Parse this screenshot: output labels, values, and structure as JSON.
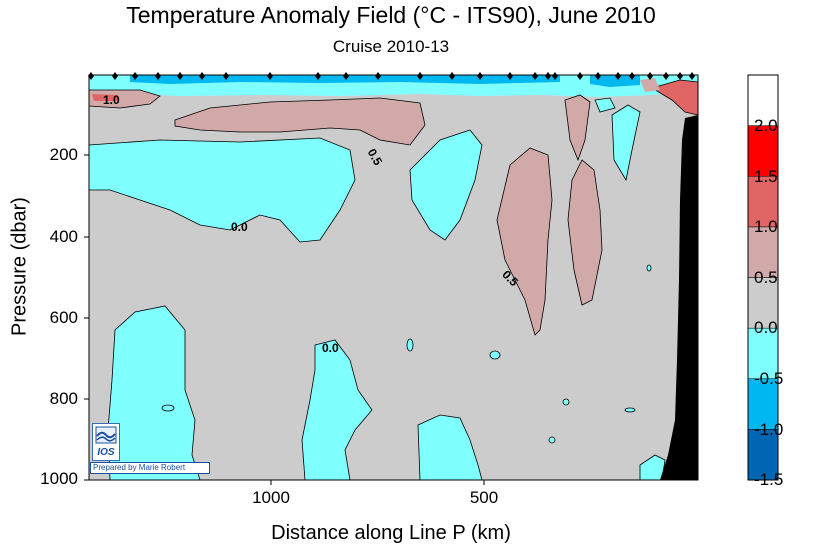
{
  "chart_data": {
    "type": "heatmap",
    "title": "Temperature Anomaly Field  (°C - ITS90),  June 2010",
    "subtitle": "Cruise 2010-13",
    "xlabel": "Distance along Line P  (km)",
    "ylabel": "Pressure  (dbar)",
    "x_ticks": [
      "1000",
      "500"
    ],
    "y_ticks": [
      "200",
      "400",
      "600",
      "800",
      "1000"
    ],
    "ylim": [
      1000,
      0
    ],
    "colorbar": {
      "levels": [
        -1.5,
        -1.0,
        -0.5,
        0.0,
        0.5,
        1.0,
        1.5,
        2.0
      ],
      "labels": [
        "-1.5",
        "-1.0",
        "-0.5",
        "0.0",
        "0.5",
        "1.0",
        "1.5",
        "2.0"
      ],
      "colors": [
        "#0066b3",
        "#00b8f0",
        "#80ffff",
        "#cccccc",
        "#d1a9a9",
        "#e06666",
        "#ff0000",
        "#ffffff"
      ]
    },
    "contour_labels": [
      "1.0",
      "0.5",
      "0.0",
      "0.5",
      "0.0"
    ],
    "background_color": "#cccccc"
  },
  "logo": {
    "text": "IOS",
    "credit": "Prepared by Marie Robert"
  }
}
